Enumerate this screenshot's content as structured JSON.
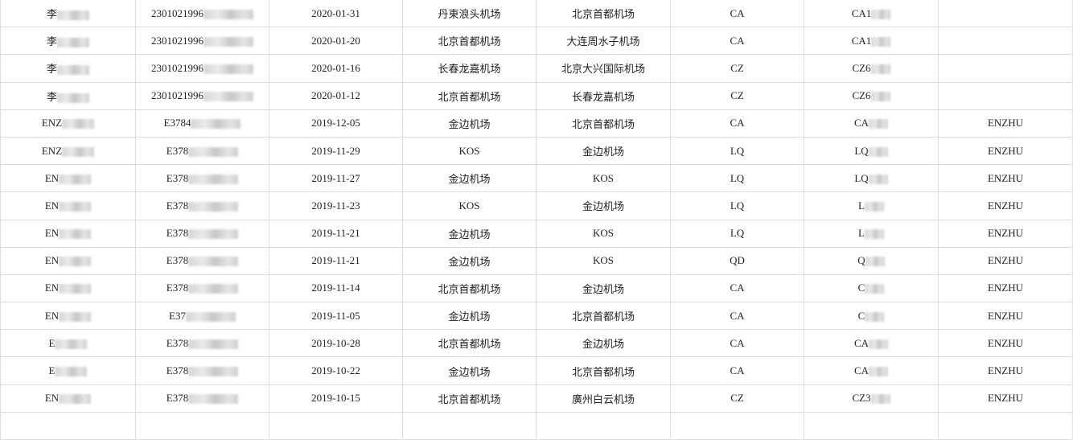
{
  "sheet": {
    "rows": [
      {
        "name": "李",
        "id": "2301021996",
        "date": "2020-01-31",
        "from": "丹東浪头机场",
        "to": "北京首都机场",
        "airline": "CA",
        "flight": "CA1",
        "passenger_en": ""
      },
      {
        "name": "李",
        "id": "2301021996",
        "date": "2020-01-20",
        "from": "北京首都机场",
        "to": "大连周水子机场",
        "airline": "CA",
        "flight": "CA1",
        "passenger_en": ""
      },
      {
        "name": "李",
        "id": "2301021996",
        "date": "2020-01-16",
        "from": "长春龙嘉机场",
        "to": "北京大兴国际机场",
        "airline": "CZ",
        "flight": "CZ6",
        "passenger_en": ""
      },
      {
        "name": "李",
        "id": "2301021996",
        "date": "2020-01-12",
        "from": "北京首都机场",
        "to": "长春龙嘉机场",
        "airline": "CZ",
        "flight": "CZ6",
        "passenger_en": ""
      },
      {
        "name": "ENZ",
        "id": "E3784",
        "date": "2019-12-05",
        "from": "金边机场",
        "to": "北京首都机场",
        "airline": "CA",
        "flight": "CA",
        "passenger_en": "ENZHU"
      },
      {
        "name": "ENZ",
        "id": "E378",
        "date": "2019-11-29",
        "from": "KOS",
        "to": "金边机场",
        "airline": "LQ",
        "flight": "LQ",
        "passenger_en": "ENZHU"
      },
      {
        "name": "EN",
        "id": "E378",
        "date": "2019-11-27",
        "from": "金边机场",
        "to": "KOS",
        "airline": "LQ",
        "flight": "LQ",
        "passenger_en": "ENZHU"
      },
      {
        "name": "EN",
        "id": "E378",
        "date": "2019-11-23",
        "from": "KOS",
        "to": "金边机场",
        "airline": "LQ",
        "flight": "L",
        "passenger_en": "ENZHU"
      },
      {
        "name": "EN",
        "id": "E378",
        "date": "2019-11-21",
        "from": "金边机场",
        "to": "KOS",
        "airline": "LQ",
        "flight": "L",
        "passenger_en": "ENZHU"
      },
      {
        "name": "EN",
        "id": "E378",
        "date": "2019-11-21",
        "from": "金边机场",
        "to": "KOS",
        "airline": "QD",
        "flight": "Q",
        "passenger_en": "ENZHU"
      },
      {
        "name": "EN",
        "id": "E378",
        "date": "2019-11-14",
        "from": "北京首都机场",
        "to": "金边机场",
        "airline": "CA",
        "flight": "C",
        "passenger_en": "ENZHU"
      },
      {
        "name": "EN",
        "id": "E37",
        "date": "2019-11-05",
        "from": "金边机场",
        "to": "北京首都机场",
        "airline": "CA",
        "flight": "C",
        "passenger_en": "ENZHU"
      },
      {
        "name": "E",
        "id": "E378",
        "date": "2019-10-28",
        "from": "北京首都机场",
        "to": "金边机场",
        "airline": "CA",
        "flight": "CA",
        "passenger_en": "ENZHU"
      },
      {
        "name": "E",
        "id": "E378",
        "date": "2019-10-22",
        "from": "金边机场",
        "to": "北京首都机场",
        "airline": "CA",
        "flight": "CA",
        "passenger_en": "ENZHU"
      },
      {
        "name": "EN",
        "id": "E378",
        "date": "2019-10-15",
        "from": "北京首都机场",
        "to": "廣州白云机场",
        "airline": "CZ",
        "flight": "CZ3",
        "passenger_en": "ENZHU"
      },
      {
        "name": "",
        "id": "",
        "date": "",
        "from": "",
        "to": "",
        "airline": "",
        "flight": "",
        "passenger_en": ""
      }
    ]
  }
}
